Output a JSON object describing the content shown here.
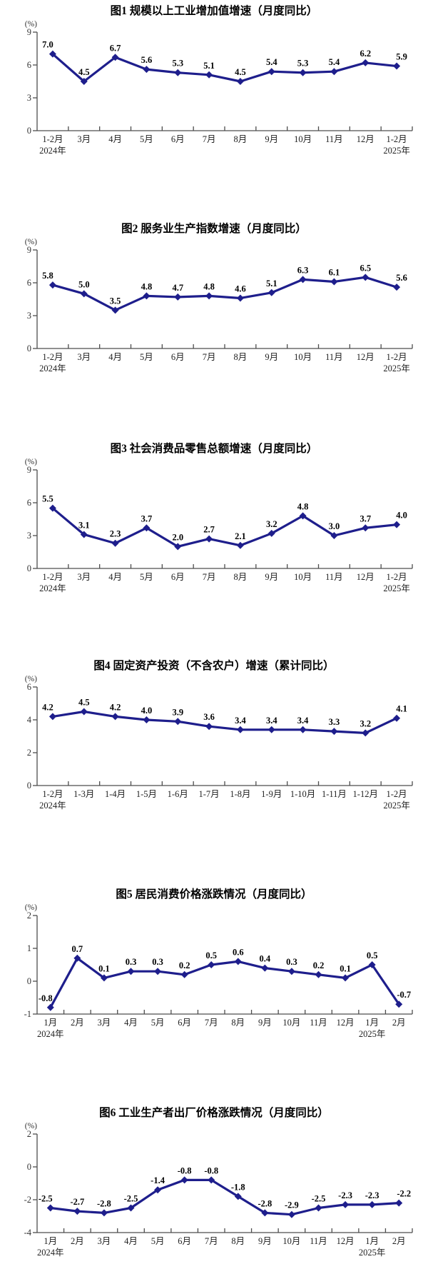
{
  "accent_color": "#1E1E8C",
  "chart_data": [
    {
      "type": "line",
      "title": "图1  规模以上工业增加值增速（月度同比）",
      "ylabel": "(%)",
      "ylim": [
        0,
        9
      ],
      "yticks": [
        0,
        3,
        6,
        9
      ],
      "grid": false,
      "legend": "none",
      "line_color": "#1E1E8C",
      "categories": [
        "1-2月",
        "3月",
        "4月",
        "5月",
        "6月",
        "7月",
        "8月",
        "9月",
        "10月",
        "11月",
        "12月",
        "1-2月"
      ],
      "year_labels": {
        "0": "2024年",
        "11": "2025年"
      },
      "values": [
        7.0,
        4.5,
        6.7,
        5.6,
        5.3,
        5.1,
        4.5,
        5.4,
        5.3,
        5.4,
        6.2,
        5.9
      ]
    },
    {
      "type": "line",
      "title": "图2  服务业生产指数增速（月度同比）",
      "ylabel": "(%)",
      "ylim": [
        0,
        9
      ],
      "yticks": [
        0,
        3,
        6,
        9
      ],
      "grid": false,
      "legend": "none",
      "line_color": "#1E1E8C",
      "categories": [
        "1-2月",
        "3月",
        "4月",
        "5月",
        "6月",
        "7月",
        "8月",
        "9月",
        "10月",
        "11月",
        "12月",
        "1-2月"
      ],
      "year_labels": {
        "0": "2024年",
        "11": "2025年"
      },
      "values": [
        5.8,
        5.0,
        3.5,
        4.8,
        4.7,
        4.8,
        4.6,
        5.1,
        6.3,
        6.1,
        6.5,
        5.6
      ]
    },
    {
      "type": "line",
      "title": "图3  社会消费品零售总额增速（月度同比）",
      "ylabel": "(%)",
      "ylim": [
        0,
        9
      ],
      "yticks": [
        0,
        3,
        6,
        9
      ],
      "grid": false,
      "legend": "none",
      "line_color": "#1E1E8C",
      "categories": [
        "1-2月",
        "3月",
        "4月",
        "5月",
        "6月",
        "7月",
        "8月",
        "9月",
        "10月",
        "11月",
        "12月",
        "1-2月"
      ],
      "year_labels": {
        "0": "2024年",
        "11": "2025年"
      },
      "values": [
        5.5,
        3.1,
        2.3,
        3.7,
        2.0,
        2.7,
        2.1,
        3.2,
        4.8,
        3.0,
        3.7,
        4.0
      ]
    },
    {
      "type": "line",
      "title": "图4  固定资产投资（不含农户）增速（累计同比）",
      "ylabel": "(%)",
      "ylim": [
        0,
        6
      ],
      "yticks": [
        0,
        2,
        4,
        6
      ],
      "grid": false,
      "legend": "none",
      "line_color": "#1E1E8C",
      "categories": [
        "1-2月",
        "1-3月",
        "1-4月",
        "1-5月",
        "1-6月",
        "1-7月",
        "1-8月",
        "1-9月",
        "1-10月",
        "1-11月",
        "1-12月",
        "1-2月"
      ],
      "year_labels": {
        "0": "2024年",
        "11": "2025年"
      },
      "values": [
        4.2,
        4.5,
        4.2,
        4.0,
        3.9,
        3.6,
        3.4,
        3.4,
        3.4,
        3.3,
        3.2,
        4.1
      ]
    },
    {
      "type": "line",
      "title": "图5  居民消费价格涨跌情况（月度同比）",
      "ylabel": "(%)",
      "ylim": [
        -1,
        2
      ],
      "yticks": [
        -1,
        0,
        1,
        2
      ],
      "grid": false,
      "legend": "none",
      "line_color": "#1E1E8C",
      "categories": [
        "1月",
        "2月",
        "3月",
        "4月",
        "5月",
        "6月",
        "7月",
        "8月",
        "9月",
        "10月",
        "11月",
        "12月",
        "1月",
        "2月"
      ],
      "year_labels": {
        "0": "2024年",
        "12": "2025年"
      },
      "values": [
        -0.8,
        0.7,
        0.1,
        0.3,
        0.3,
        0.2,
        0.5,
        0.6,
        0.4,
        0.3,
        0.2,
        0.1,
        0.5,
        -0.7
      ]
    },
    {
      "type": "line",
      "title": "图6  工业生产者出厂价格涨跌情况（月度同比）",
      "ylabel": "(%)",
      "ylim": [
        -4,
        2
      ],
      "yticks": [
        -4,
        -2,
        0,
        2
      ],
      "grid": false,
      "legend": "none",
      "line_color": "#1E1E8C",
      "categories": [
        "1月",
        "2月",
        "3月",
        "4月",
        "5月",
        "6月",
        "7月",
        "8月",
        "9月",
        "10月",
        "11月",
        "12月",
        "1月",
        "2月"
      ],
      "year_labels": {
        "0": "2024年",
        "12": "2025年"
      },
      "values": [
        -2.5,
        -2.7,
        -2.8,
        -2.5,
        -1.4,
        -0.8,
        -0.8,
        -1.8,
        -2.8,
        -2.9,
        -2.5,
        -2.3,
        -2.3,
        -2.2
      ]
    }
  ]
}
